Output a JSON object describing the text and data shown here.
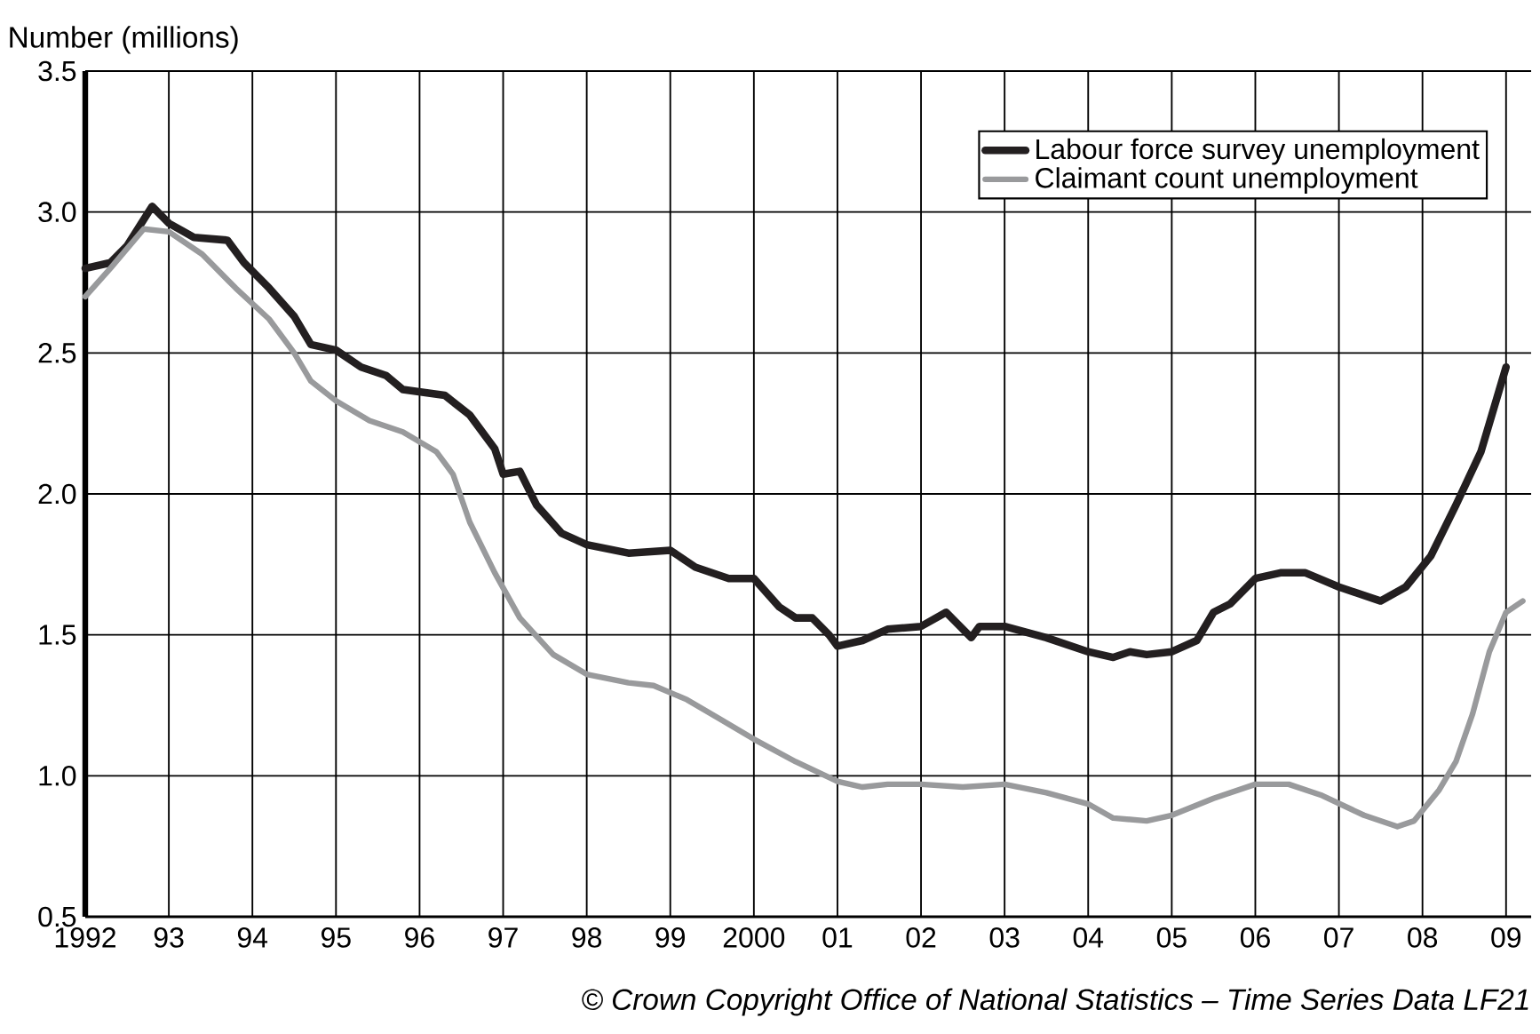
{
  "chart_data": {
    "type": "line",
    "ylabel": "Number (millions)",
    "annotations": [
      "© Crown Copyright Office of National Statistics – Time Series Data LF21"
    ],
    "xlim": [
      1992,
      2009.3
    ],
    "ylim": [
      0.5,
      3.5
    ],
    "xticks": [
      {
        "value": 1992,
        "label": "1992"
      },
      {
        "value": 1993,
        "label": "93"
      },
      {
        "value": 1994,
        "label": "94"
      },
      {
        "value": 1995,
        "label": "95"
      },
      {
        "value": 1996,
        "label": "96"
      },
      {
        "value": 1997,
        "label": "97"
      },
      {
        "value": 1998,
        "label": "98"
      },
      {
        "value": 1999,
        "label": "99"
      },
      {
        "value": 2000,
        "label": "2000"
      },
      {
        "value": 2001,
        "label": "01"
      },
      {
        "value": 2002,
        "label": "02"
      },
      {
        "value": 2003,
        "label": "03"
      },
      {
        "value": 2004,
        "label": "04"
      },
      {
        "value": 2005,
        "label": "05"
      },
      {
        "value": 2006,
        "label": "06"
      },
      {
        "value": 2007,
        "label": "07"
      },
      {
        "value": 2008,
        "label": "08"
      },
      {
        "value": 2009,
        "label": "09"
      }
    ],
    "yticks": [
      {
        "value": 0.5,
        "label": "0.5"
      },
      {
        "value": 1,
        "label": "1.0"
      },
      {
        "value": 1.5,
        "label": "1.5"
      },
      {
        "value": 2,
        "label": "2.0"
      },
      {
        "value": 2.5,
        "label": "2.5"
      },
      {
        "value": 3,
        "label": "3.0"
      },
      {
        "value": 3.5,
        "label": "3.5"
      }
    ],
    "grid": true,
    "legend": "top right",
    "marker": "none",
    "line_style": "solid",
    "series": [
      {
        "name": "Labour force survey unemployment",
        "color": "#231f20",
        "x": [
          1992.0,
          1992.3,
          1992.5,
          1992.8,
          1993.0,
          1993.3,
          1993.7,
          1993.9,
          1994.2,
          1994.5,
          1994.7,
          1995.0,
          1995.3,
          1995.6,
          1995.8,
          1996.3,
          1996.6,
          1996.9,
          1997.0,
          1997.2,
          1997.4,
          1997.7,
          1998.0,
          1998.5,
          1999.0,
          1999.3,
          1999.7,
          2000.0,
          2000.3,
          2000.5,
          2000.7,
          2000.9,
          2001.0,
          2001.3,
          2001.6,
          2002.0,
          2002.3,
          2002.6,
          2002.7,
          2003.0,
          2003.5,
          2004.0,
          2004.3,
          2004.5,
          2004.7,
          2005.0,
          2005.3,
          2005.5,
          2005.7,
          2006.0,
          2006.3,
          2006.6,
          2007.0,
          2007.5,
          2007.8,
          2008.1,
          2008.4,
          2008.7,
          2009.0
        ],
        "values": [
          2.8,
          2.82,
          2.88,
          3.02,
          2.96,
          2.91,
          2.9,
          2.82,
          2.73,
          2.63,
          2.53,
          2.51,
          2.45,
          2.42,
          2.37,
          2.35,
          2.28,
          2.16,
          2.07,
          2.08,
          1.96,
          1.86,
          1.82,
          1.79,
          1.8,
          1.74,
          1.7,
          1.7,
          1.6,
          1.56,
          1.56,
          1.5,
          1.46,
          1.48,
          1.52,
          1.53,
          1.58,
          1.49,
          1.53,
          1.53,
          1.49,
          1.44,
          1.42,
          1.44,
          1.43,
          1.44,
          1.48,
          1.58,
          1.61,
          1.7,
          1.72,
          1.72,
          1.67,
          1.62,
          1.67,
          1.78,
          1.96,
          2.15,
          2.45
        ]
      },
      {
        "name": "Claimant count unemployment",
        "color": "#999a9c",
        "x": [
          1992.0,
          1992.3,
          1992.7,
          1993.0,
          1993.4,
          1993.8,
          1994.2,
          1994.5,
          1994.7,
          1995.0,
          1995.4,
          1995.8,
          1996.2,
          1996.4,
          1996.6,
          1996.9,
          1997.2,
          1997.6,
          1998.0,
          1998.5,
          1998.8,
          1999.2,
          1999.6,
          2000.0,
          2000.5,
          2001.0,
          2001.3,
          2001.6,
          2002.0,
          2002.5,
          2003.0,
          2003.5,
          2004.0,
          2004.3,
          2004.7,
          2005.0,
          2005.5,
          2006.0,
          2006.4,
          2006.8,
          2007.3,
          2007.7,
          2007.9,
          2008.2,
          2008.4,
          2008.6,
          2008.8,
          2009.0,
          2009.2
        ],
        "values": [
          2.7,
          2.8,
          2.94,
          2.93,
          2.85,
          2.73,
          2.62,
          2.5,
          2.4,
          2.33,
          2.26,
          2.22,
          2.15,
          2.07,
          1.9,
          1.72,
          1.56,
          1.43,
          1.36,
          1.33,
          1.32,
          1.27,
          1.2,
          1.13,
          1.05,
          0.98,
          0.96,
          0.97,
          0.97,
          0.96,
          0.97,
          0.94,
          0.9,
          0.85,
          0.84,
          0.86,
          0.92,
          0.97,
          0.97,
          0.93,
          0.86,
          0.82,
          0.84,
          0.95,
          1.05,
          1.22,
          1.44,
          1.58,
          1.62
        ]
      }
    ]
  }
}
